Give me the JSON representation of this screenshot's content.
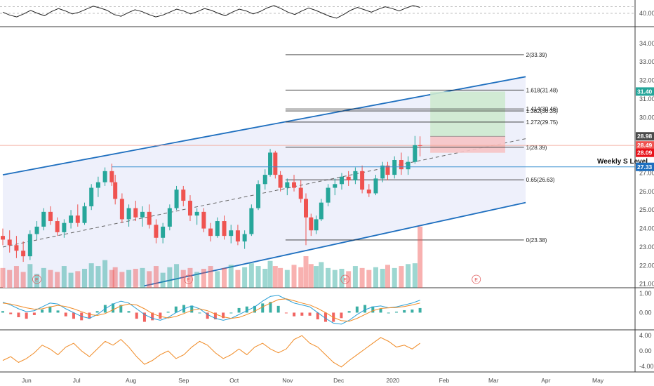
{
  "axes": {
    "months": [
      {
        "label": "Jun",
        "day": 14
      },
      {
        "label": "Jul",
        "day": 44
      },
      {
        "label": "Aug",
        "day": 75
      },
      {
        "label": "Sep",
        "day": 106
      },
      {
        "label": "Oct",
        "day": 136
      },
      {
        "label": "Nov",
        "day": 167
      },
      {
        "label": "Dec",
        "day": 197
      },
      {
        "label": "2020",
        "day": 228
      },
      {
        "label": "Feb",
        "day": 259
      },
      {
        "label": "Mar",
        "day": 288
      },
      {
        "label": "Apr",
        "day": 319
      },
      {
        "label": "May",
        "day": 349
      }
    ],
    "last_day": 245
  },
  "colors": {
    "up": "#26a69a",
    "down": "#ef5350",
    "channel": "#1e6fbf",
    "channel_fill": "#eef0fb",
    "profit_zone": "#cde9cf",
    "loss_zone": "#f6c3c5",
    "macd_line": "#2a9fd6",
    "signal_line": "#f08a24",
    "osc_line": "#f08a24"
  },
  "indicator_top": {
    "ylim": [
      35,
      45
    ],
    "ticks": [
      "40.00"
    ],
    "level_lines": [
      42.5,
      40
    ]
  },
  "indicator_macd": {
    "ylim": [
      -0.9,
      1.3
    ],
    "ticks": [
      "1.00",
      "0.00"
    ]
  },
  "indicator_osc": {
    "ylim": [
      -5.5,
      5.5
    ],
    "ticks": [
      "4.00",
      "0.00",
      "-4.00"
    ]
  },
  "chart_data": {
    "type": "candlestick",
    "ylim": [
      20.8,
      34.6
    ],
    "y_ticks": [
      "34.00",
      "33.00",
      "32.00",
      "31.00",
      "30.00",
      "29.00",
      "28.00",
      "27.00",
      "26.00",
      "25.00",
      "24.00",
      "23.00",
      "22.00",
      "21.00"
    ],
    "candles": [
      {
        "day": 0,
        "o": 23.6,
        "h": 24.0,
        "l": 23.1,
        "c": 23.4
      },
      {
        "day": 4,
        "o": 23.4,
        "h": 23.9,
        "l": 22.7,
        "c": 23.1
      },
      {
        "day": 8,
        "o": 23.1,
        "h": 23.6,
        "l": 22.4,
        "c": 22.8
      },
      {
        "day": 12,
        "o": 22.8,
        "h": 23.3,
        "l": 22.2,
        "c": 22.5
      },
      {
        "day": 16,
        "o": 22.5,
        "h": 23.9,
        "l": 22.3,
        "c": 23.7
      },
      {
        "day": 20,
        "o": 23.7,
        "h": 24.4,
        "l": 23.4,
        "c": 24.1
      },
      {
        "day": 24,
        "o": 24.1,
        "h": 25.1,
        "l": 23.9,
        "c": 24.9
      },
      {
        "day": 28,
        "o": 24.9,
        "h": 25.2,
        "l": 24.2,
        "c": 24.4
      },
      {
        "day": 32,
        "o": 24.4,
        "h": 24.6,
        "l": 23.6,
        "c": 23.8
      },
      {
        "day": 36,
        "o": 23.8,
        "h": 24.5,
        "l": 23.5,
        "c": 24.3
      },
      {
        "day": 40,
        "o": 24.3,
        "h": 25.0,
        "l": 24.0,
        "c": 24.7
      },
      {
        "day": 44,
        "o": 24.7,
        "h": 25.3,
        "l": 24.1,
        "c": 24.3
      },
      {
        "day": 48,
        "o": 24.3,
        "h": 25.4,
        "l": 24.2,
        "c": 25.2
      },
      {
        "day": 52,
        "o": 25.2,
        "h": 26.4,
        "l": 25.0,
        "c": 26.2
      },
      {
        "day": 56,
        "o": 26.2,
        "h": 26.8,
        "l": 25.7,
        "c": 26.5
      },
      {
        "day": 60,
        "o": 26.5,
        "h": 27.3,
        "l": 26.3,
        "c": 27.1
      },
      {
        "day": 64,
        "o": 27.1,
        "h": 27.5,
        "l": 26.3,
        "c": 26.5
      },
      {
        "day": 66,
        "o": 26.5,
        "h": 26.9,
        "l": 25.3,
        "c": 25.6
      },
      {
        "day": 70,
        "o": 25.6,
        "h": 25.9,
        "l": 24.3,
        "c": 24.5
      },
      {
        "day": 74,
        "o": 24.5,
        "h": 25.3,
        "l": 24.1,
        "c": 25.1
      },
      {
        "day": 78,
        "o": 25.1,
        "h": 25.5,
        "l": 24.4,
        "c": 24.6
      },
      {
        "day": 82,
        "o": 24.6,
        "h": 25.2,
        "l": 24.1,
        "c": 24.9
      },
      {
        "day": 86,
        "o": 24.9,
        "h": 25.3,
        "l": 24.0,
        "c": 24.2
      },
      {
        "day": 90,
        "o": 24.2,
        "h": 24.5,
        "l": 23.2,
        "c": 23.5
      },
      {
        "day": 94,
        "o": 23.5,
        "h": 24.3,
        "l": 23.2,
        "c": 24.1
      },
      {
        "day": 98,
        "o": 24.1,
        "h": 25.3,
        "l": 23.9,
        "c": 25.1
      },
      {
        "day": 102,
        "o": 25.1,
        "h": 26.3,
        "l": 25.0,
        "c": 26.1
      },
      {
        "day": 106,
        "o": 26.1,
        "h": 26.3,
        "l": 25.2,
        "c": 25.5
      },
      {
        "day": 110,
        "o": 25.5,
        "h": 25.8,
        "l": 24.4,
        "c": 24.7
      },
      {
        "day": 114,
        "o": 24.7,
        "h": 25.1,
        "l": 24.2,
        "c": 24.9
      },
      {
        "day": 118,
        "o": 24.9,
        "h": 25.1,
        "l": 23.8,
        "c": 24.0
      },
      {
        "day": 122,
        "o": 24.0,
        "h": 24.3,
        "l": 23.3,
        "c": 23.6
      },
      {
        "day": 126,
        "o": 23.6,
        "h": 24.6,
        "l": 23.5,
        "c": 24.4
      },
      {
        "day": 130,
        "o": 24.4,
        "h": 24.7,
        "l": 23.4,
        "c": 23.6
      },
      {
        "day": 134,
        "o": 23.6,
        "h": 24.2,
        "l": 23.2,
        "c": 23.9
      },
      {
        "day": 138,
        "o": 23.9,
        "h": 24.2,
        "l": 23.1,
        "c": 23.3
      },
      {
        "day": 142,
        "o": 23.3,
        "h": 23.9,
        "l": 22.9,
        "c": 23.7
      },
      {
        "day": 146,
        "o": 23.7,
        "h": 25.3,
        "l": 23.6,
        "c": 25.1
      },
      {
        "day": 150,
        "o": 25.1,
        "h": 26.6,
        "l": 25.0,
        "c": 26.4
      },
      {
        "day": 154,
        "o": 26.4,
        "h": 27.2,
        "l": 26.1,
        "c": 26.9
      },
      {
        "day": 157,
        "o": 26.9,
        "h": 28.3,
        "l": 26.8,
        "c": 28.1
      },
      {
        "day": 160,
        "o": 28.1,
        "h": 28.2,
        "l": 26.7,
        "c": 26.9
      },
      {
        "day": 163,
        "o": 26.9,
        "h": 27.1,
        "l": 26.0,
        "c": 26.2
      },
      {
        "day": 167,
        "o": 26.2,
        "h": 26.7,
        "l": 25.8,
        "c": 26.5
      },
      {
        "day": 171,
        "o": 26.5,
        "h": 26.9,
        "l": 26.0,
        "c": 26.2
      },
      {
        "day": 175,
        "o": 26.2,
        "h": 26.6,
        "l": 25.4,
        "c": 25.6
      },
      {
        "day": 178,
        "o": 25.6,
        "h": 25.9,
        "l": 23.1,
        "c": 24.6
      },
      {
        "day": 181,
        "o": 24.6,
        "h": 24.8,
        "l": 23.6,
        "c": 23.9
      },
      {
        "day": 184,
        "o": 23.9,
        "h": 24.7,
        "l": 23.7,
        "c": 24.5
      },
      {
        "day": 187,
        "o": 24.5,
        "h": 25.6,
        "l": 24.4,
        "c": 25.4
      },
      {
        "day": 191,
        "o": 25.4,
        "h": 26.4,
        "l": 25.2,
        "c": 26.2
      },
      {
        "day": 195,
        "o": 26.2,
        "h": 26.7,
        "l": 25.8,
        "c": 26.4
      },
      {
        "day": 199,
        "o": 26.4,
        "h": 27.0,
        "l": 26.1,
        "c": 26.8
      },
      {
        "day": 203,
        "o": 26.8,
        "h": 27.1,
        "l": 26.3,
        "c": 26.6
      },
      {
        "day": 207,
        "o": 26.6,
        "h": 27.3,
        "l": 26.4,
        "c": 27.1
      },
      {
        "day": 211,
        "o": 27.1,
        "h": 27.4,
        "l": 25.9,
        "c": 26.1
      },
      {
        "day": 215,
        "o": 26.1,
        "h": 26.4,
        "l": 25.7,
        "c": 25.9
      },
      {
        "day": 219,
        "o": 25.9,
        "h": 26.9,
        "l": 25.8,
        "c": 26.7
      },
      {
        "day": 223,
        "o": 26.7,
        "h": 27.6,
        "l": 26.5,
        "c": 27.4
      },
      {
        "day": 226,
        "o": 27.4,
        "h": 27.6,
        "l": 26.6,
        "c": 26.9
      },
      {
        "day": 230,
        "o": 26.9,
        "h": 27.9,
        "l": 26.7,
        "c": 27.7
      },
      {
        "day": 234,
        "o": 27.7,
        "h": 28.1,
        "l": 26.9,
        "c": 27.2
      },
      {
        "day": 238,
        "o": 27.2,
        "h": 27.9,
        "l": 26.9,
        "c": 27.6
      },
      {
        "day": 242,
        "o": 27.6,
        "h": 29.0,
        "l": 27.5,
        "c": 28.5
      },
      {
        "day": 245,
        "o": 28.5,
        "h": 28.98,
        "l": 27.9,
        "c": 28.49
      }
    ],
    "volume": [
      {
        "day": 0,
        "v": 0.5
      },
      {
        "day": 4,
        "v": 0.45
      },
      {
        "day": 8,
        "v": 0.55
      },
      {
        "day": 12,
        "v": 0.4
      },
      {
        "day": 16,
        "v": 0.6
      },
      {
        "day": 20,
        "v": 0.35
      },
      {
        "day": 24,
        "v": 0.5
      },
      {
        "day": 28,
        "v": 0.45
      },
      {
        "day": 32,
        "v": 0.4
      },
      {
        "day": 36,
        "v": 0.55
      },
      {
        "day": 40,
        "v": 0.38
      },
      {
        "day": 44,
        "v": 0.42
      },
      {
        "day": 48,
        "v": 0.48
      },
      {
        "day": 52,
        "v": 0.62
      },
      {
        "day": 56,
        "v": 0.55
      },
      {
        "day": 60,
        "v": 0.7
      },
      {
        "day": 64,
        "v": 0.45
      },
      {
        "day": 66,
        "v": 0.52
      },
      {
        "day": 70,
        "v": 0.4
      },
      {
        "day": 74,
        "v": 0.45
      },
      {
        "day": 78,
        "v": 0.48
      },
      {
        "day": 82,
        "v": 0.5
      },
      {
        "day": 86,
        "v": 0.42
      },
      {
        "day": 90,
        "v": 0.55
      },
      {
        "day": 94,
        "v": 0.38
      },
      {
        "day": 98,
        "v": 0.52
      },
      {
        "day": 102,
        "v": 0.6
      },
      {
        "day": 106,
        "v": 0.45
      },
      {
        "day": 110,
        "v": 0.5
      },
      {
        "day": 114,
        "v": 0.4
      },
      {
        "day": 118,
        "v": 0.48
      },
      {
        "day": 122,
        "v": 0.55
      },
      {
        "day": 126,
        "v": 0.42
      },
      {
        "day": 130,
        "v": 0.5
      },
      {
        "day": 134,
        "v": 0.58
      },
      {
        "day": 138,
        "v": 0.45
      },
      {
        "day": 142,
        "v": 0.52
      },
      {
        "day": 146,
        "v": 0.62
      },
      {
        "day": 150,
        "v": 0.55
      },
      {
        "day": 154,
        "v": 0.48
      },
      {
        "day": 157,
        "v": 0.68
      },
      {
        "day": 160,
        "v": 0.55
      },
      {
        "day": 163,
        "v": 0.5
      },
      {
        "day": 167,
        "v": 0.45
      },
      {
        "day": 171,
        "v": 0.58
      },
      {
        "day": 175,
        "v": 0.52
      },
      {
        "day": 178,
        "v": 0.8
      },
      {
        "day": 181,
        "v": 0.6
      },
      {
        "day": 184,
        "v": 0.55
      },
      {
        "day": 187,
        "v": 0.65
      },
      {
        "day": 191,
        "v": 0.5
      },
      {
        "day": 195,
        "v": 0.45
      },
      {
        "day": 199,
        "v": 0.48
      },
      {
        "day": 203,
        "v": 0.42
      },
      {
        "day": 207,
        "v": 0.55
      },
      {
        "day": 211,
        "v": 0.5
      },
      {
        "day": 215,
        "v": 0.45
      },
      {
        "day": 219,
        "v": 0.52
      },
      {
        "day": 223,
        "v": 0.48
      },
      {
        "day": 226,
        "v": 0.58
      },
      {
        "day": 230,
        "v": 0.5
      },
      {
        "day": 234,
        "v": 0.55
      },
      {
        "day": 238,
        "v": 0.6
      },
      {
        "day": 242,
        "v": 0.62
      },
      {
        "day": 245,
        "v": 1.55
      }
    ],
    "volume_max": 1.6,
    "channel": {
      "upper": [
        {
          "day": 0,
          "price": 26.9
        },
        {
          "day": 307,
          "price": 32.2
        }
      ],
      "lower": [
        {
          "day": 83,
          "price": 20.9
        },
        {
          "day": 307,
          "price": 25.4
        }
      ],
      "mid": [
        {
          "day": 0,
          "price": 23.0
        },
        {
          "day": 307,
          "price": 28.85
        }
      ]
    },
    "weekly_support": {
      "price": 27.33,
      "from_day": 64,
      "label": "Weekly S Level"
    },
    "fibonacci": {
      "from_day": 166,
      "to_day": 306,
      "levels": [
        {
          "price": 33.39,
          "label": "2(33.39)"
        },
        {
          "price": 31.48,
          "label": "1.618(31.48)"
        },
        {
          "price": 30.46,
          "label": "1.414(30.46)"
        },
        {
          "price": 30.35,
          "label": "1.382(30.35)"
        },
        {
          "price": 29.75,
          "label": "1.272(29.75)"
        },
        {
          "price": 28.39,
          "label": "1(28.39)"
        },
        {
          "price": 26.63,
          "label": "0.65(26.63)"
        },
        {
          "price": 23.38,
          "label": "0(23.38)"
        }
      ]
    },
    "position": {
      "from_day": 251,
      "to_day": 295,
      "target": 31.4,
      "entry": 28.98,
      "stop": 28.09
    },
    "price_tags": [
      {
        "price": 31.4,
        "text": "31.40",
        "color": "#26a69a"
      },
      {
        "price": 28.98,
        "text": "28.98",
        "color": "#4a4a4a"
      },
      {
        "price": 28.49,
        "text": "28.49",
        "color": "#ef5350"
      },
      {
        "price": 28.09,
        "text": "28.09",
        "color": "#e8121a"
      },
      {
        "price": 27.33,
        "text": "27.33",
        "color": "#1e6fbf"
      }
    ],
    "earnings_markers": [
      {
        "day": 20,
        "text": "E"
      },
      {
        "day": 109,
        "text": "E"
      },
      {
        "day": 201,
        "text": "E"
      },
      {
        "day": 278,
        "text": "E"
      }
    ]
  },
  "rsi_series": [
    52,
    47,
    44,
    49,
    55,
    50,
    46,
    53,
    58,
    54,
    49,
    52,
    57,
    62,
    59,
    55,
    48,
    45,
    51,
    56,
    53,
    48,
    44,
    47,
    52,
    57,
    54,
    49,
    53,
    58,
    55,
    50,
    46,
    52,
    57,
    54,
    49,
    53,
    59,
    63,
    58,
    52,
    48,
    54,
    59,
    55,
    50,
    45,
    42,
    48,
    55,
    60,
    56,
    52,
    57,
    61,
    58,
    54,
    59,
    63,
    60
  ],
  "macd_series": [
    0.55,
    0.4,
    0.2,
    0.05,
    0.1,
    0.3,
    0.5,
    0.45,
    0.2,
    0.0,
    -0.2,
    -0.3,
    -0.1,
    0.2,
    0.45,
    0.6,
    0.5,
    0.2,
    -0.1,
    -0.3,
    -0.4,
    -0.25,
    0.0,
    0.2,
    0.35,
    0.2,
    -0.1,
    -0.3,
    -0.4,
    -0.3,
    -0.1,
    0.1,
    0.3,
    0.6,
    0.85,
    0.9,
    0.7,
    0.5,
    0.4,
    0.3,
    0.0,
    -0.3,
    -0.55,
    -0.6,
    -0.4,
    -0.1,
    0.15,
    0.3,
    0.35,
    0.25,
    0.3,
    0.4,
    0.5,
    0.65
  ],
  "signal_series": [
    0.5,
    0.45,
    0.35,
    0.25,
    0.18,
    0.2,
    0.3,
    0.38,
    0.32,
    0.2,
    0.05,
    -0.1,
    -0.15,
    -0.05,
    0.15,
    0.35,
    0.45,
    0.4,
    0.2,
    -0.05,
    -0.2,
    -0.28,
    -0.2,
    -0.05,
    0.12,
    0.2,
    0.1,
    -0.08,
    -0.22,
    -0.3,
    -0.25,
    -0.1,
    0.08,
    0.3,
    0.5,
    0.68,
    0.72,
    0.62,
    0.5,
    0.4,
    0.22,
    0.0,
    -0.25,
    -0.42,
    -0.45,
    -0.3,
    -0.1,
    0.1,
    0.22,
    0.25,
    0.27,
    0.32,
    0.4,
    0.5
  ],
  "osc_series": [
    -2.5,
    -1.5,
    -3.0,
    -2.0,
    -0.5,
    1.5,
    0.5,
    -1.0,
    1.0,
    2.0,
    0.0,
    -1.5,
    0.5,
    2.5,
    1.5,
    3.0,
    1.0,
    -1.5,
    -3.5,
    -2.5,
    -1.0,
    0.0,
    -2.0,
    -1.0,
    1.0,
    2.5,
    1.5,
    -0.5,
    -2.0,
    -1.0,
    0.5,
    -1.0,
    1.0,
    2.0,
    0.5,
    -0.5,
    0.5,
    3.0,
    4.0,
    2.0,
    1.0,
    -1.0,
    -3.0,
    -4.2,
    -2.5,
    -1.0,
    0.5,
    2.0,
    3.5,
    2.5,
    1.0,
    1.5,
    0.5,
    2.0
  ]
}
